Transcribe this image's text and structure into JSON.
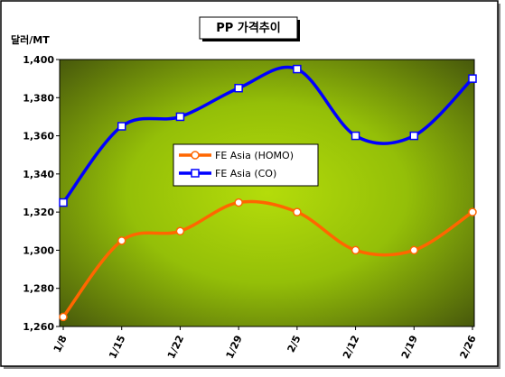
{
  "chart_data": {
    "type": "line",
    "title": "PP 가격추이",
    "y_label": "달러/MT",
    "categories": [
      "1/8",
      "1/15",
      "1/22",
      "1/29",
      "2/5",
      "2/12",
      "2/19",
      "2/26"
    ],
    "series": [
      {
        "name": "FE Asia (HOMO)",
        "color": "#ff6600",
        "marker": "circle",
        "values": [
          1265,
          1305,
          1310,
          1325,
          1320,
          1300,
          1300,
          1320
        ]
      },
      {
        "name": "FE Asia (CO)",
        "color": "#0000ff",
        "marker": "square",
        "values": [
          1325,
          1365,
          1370,
          1385,
          1395,
          1360,
          1360,
          1390
        ]
      }
    ],
    "ylim": [
      1260,
      1400
    ],
    "yticks": [
      {
        "value": 1260,
        "label": "1,260"
      },
      {
        "value": 1280,
        "label": "1,280"
      },
      {
        "value": 1300,
        "label": "1,300"
      },
      {
        "value": 1320,
        "label": "1,320"
      },
      {
        "value": 1340,
        "label": "1,340"
      },
      {
        "value": 1360,
        "label": "1,360"
      },
      {
        "value": 1380,
        "label": "1,380"
      },
      {
        "value": 1400,
        "label": "1,400"
      }
    ]
  }
}
